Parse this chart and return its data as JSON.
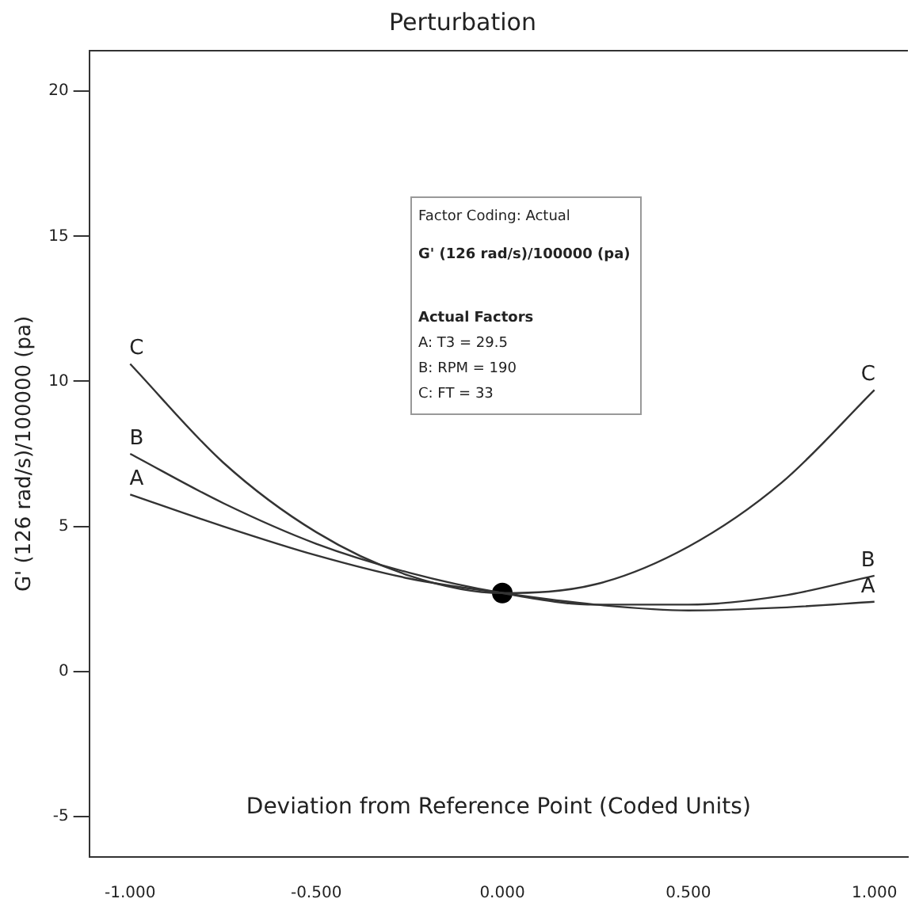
{
  "chart_data": {
    "type": "line",
    "title": "Perturbation",
    "xlabel": "Deviation from Reference Point (Coded Units)",
    "ylabel": "G' (126 rad/s)/100000 (pa)",
    "x": [
      -1,
      -0.75,
      -0.5,
      -0.25,
      0,
      0.25,
      0.5,
      0.75,
      1
    ],
    "series": [
      {
        "name": "C",
        "color": "#333333",
        "values": [
          10.6,
          7.2,
          4.8,
          3.3,
          2.7,
          3.0,
          4.3,
          6.5,
          9.7
        ]
      },
      {
        "name": "B",
        "color": "#333333",
        "values": [
          7.5,
          5.8,
          4.4,
          3.4,
          2.7,
          2.3,
          2.3,
          2.6,
          3.3
        ]
      },
      {
        "name": "A",
        "color": "#333333",
        "values": [
          6.1,
          5.0,
          4.0,
          3.2,
          2.7,
          2.3,
          2.1,
          2.2,
          2.4
        ]
      },
      {
        "type": "scatter",
        "color": "#000000",
        "marker": "circle",
        "x": [
          0
        ],
        "values": [
          2.7
        ]
      }
    ],
    "marker": "none",
    "line_style": "solid",
    "grid": false,
    "legend": false,
    "xlim": [
      -1.11,
      1.09
    ],
    "ylim": [
      -6.4,
      21.4
    ],
    "xticks": [
      {
        "value": -1,
        "label": "-1.000"
      },
      {
        "value": -0.5,
        "label": "-0.500"
      },
      {
        "value": 0,
        "label": "0.000"
      },
      {
        "value": 0.5,
        "label": "0.500"
      },
      {
        "value": 1,
        "label": "1.000"
      }
    ],
    "yticks": [
      -5,
      0,
      5,
      10,
      15,
      20
    ],
    "annotations": [
      "Factor Coding: Actual",
      "G' (126 rad/s)/100000 (pa)",
      "Actual Factors",
      "A: T3 = 29.5",
      "B: RPM = 190",
      "C: FT = 33"
    ]
  }
}
